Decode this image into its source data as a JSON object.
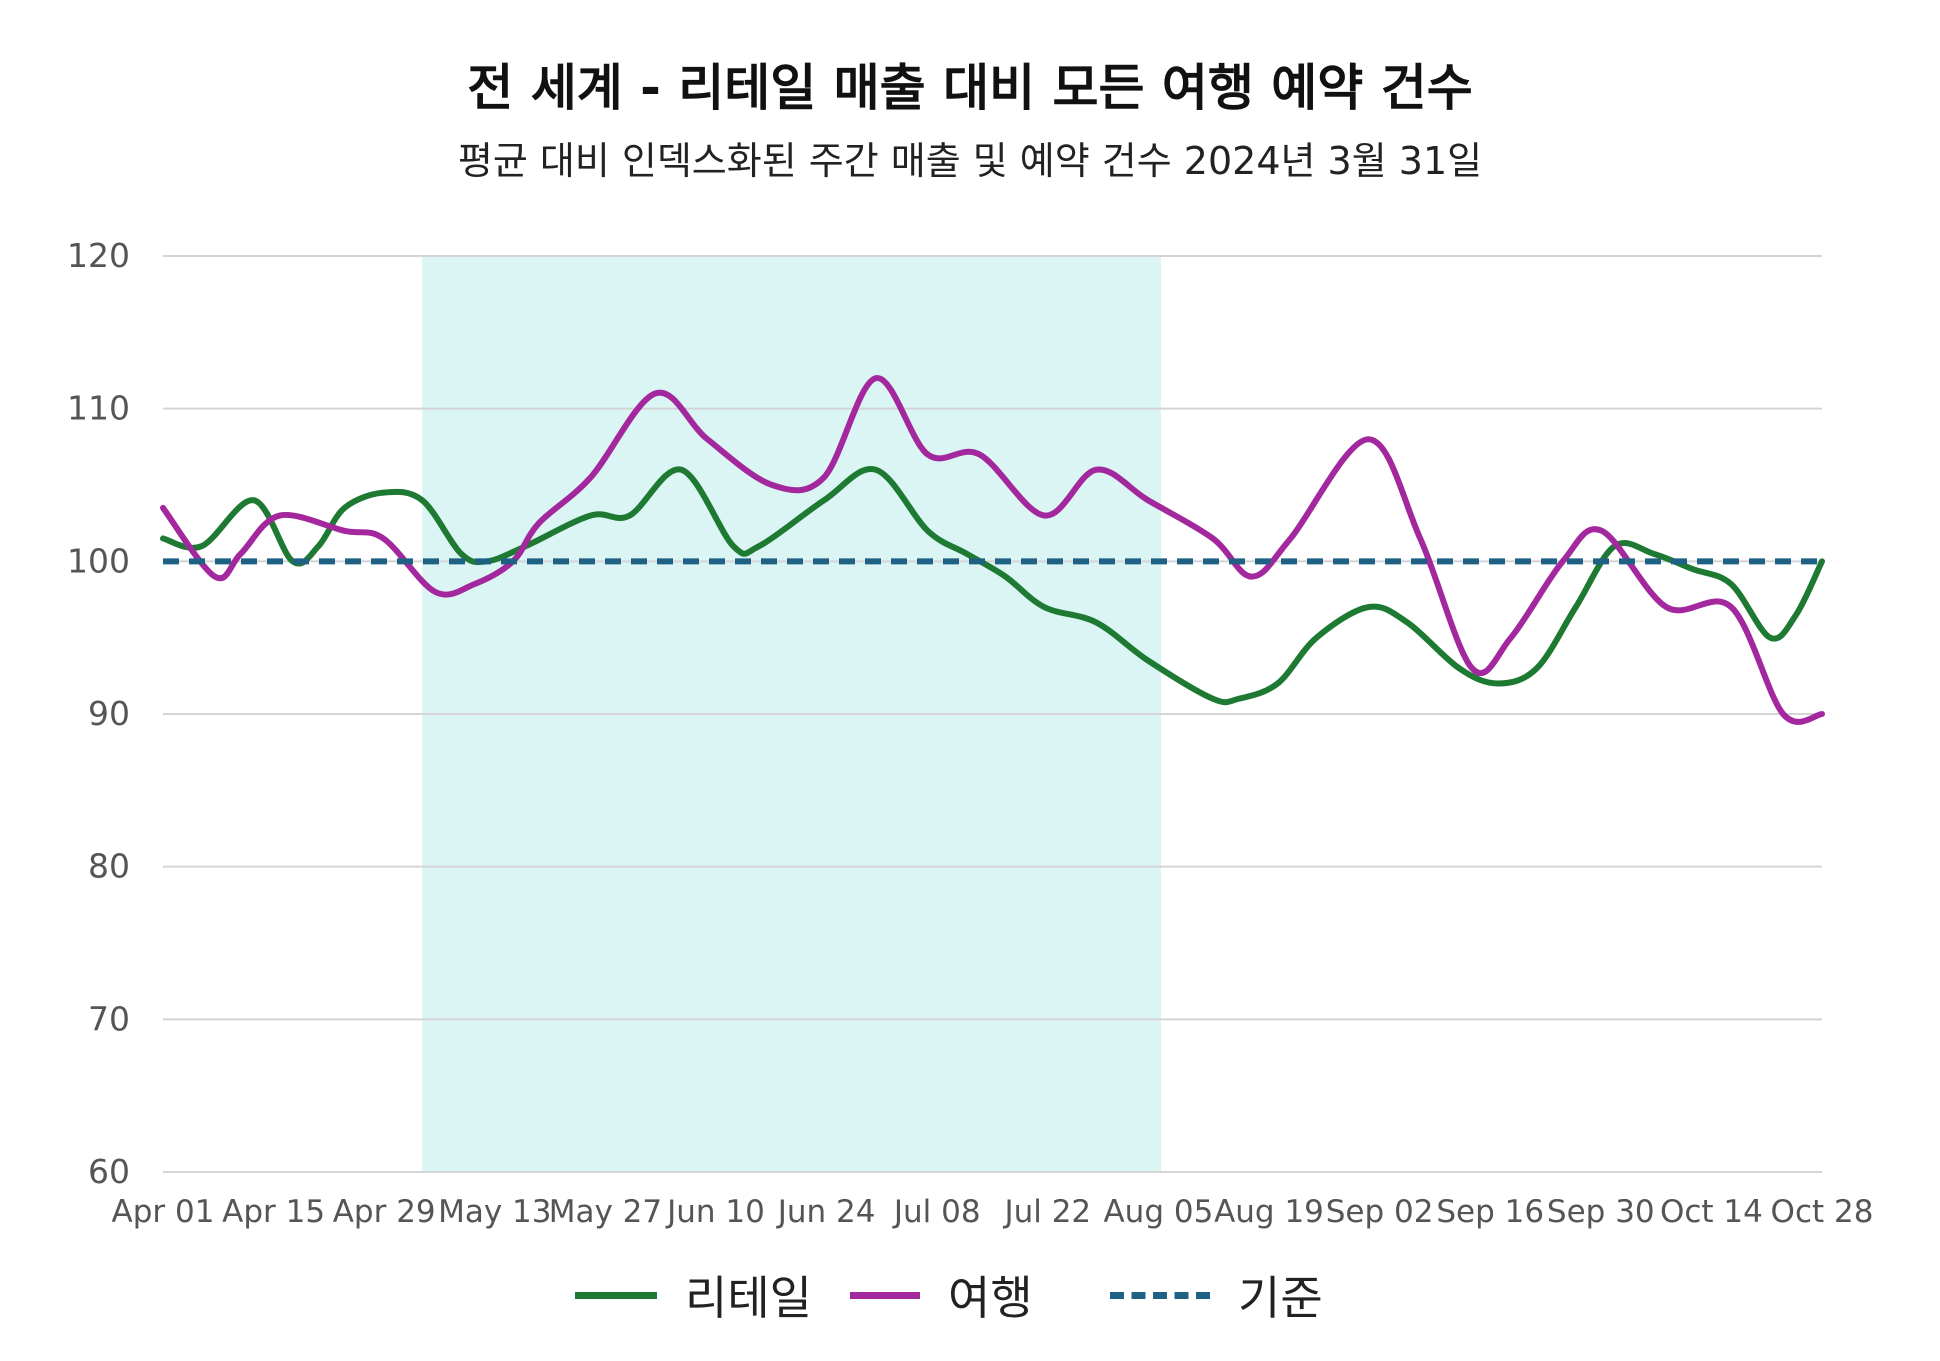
{
  "chart_data": {
    "type": "line",
    "title": "전 세계 - 리테일 매출 대비 모든 여행 예약 건수",
    "subtitle": "평균 대비 인덱스화된 주간 매출 및 예약 건수   2024년 3월 31일",
    "xlabel": "",
    "ylabel": "",
    "ylim": [
      60,
      120
    ],
    "yticks": [
      60,
      70,
      80,
      90,
      100,
      110,
      120
    ],
    "x_tick_labels": [
      "Apr 01",
      "Apr 15",
      "Apr 29",
      "May 13",
      "May 27",
      "Jun 10",
      "Jun 24",
      "Jul 08",
      "Jul 22",
      "Aug 05",
      "Aug 19",
      "Sep 02",
      "Sep 16",
      "Sep 30",
      "Oct 14",
      "Oct 28"
    ],
    "grid": true,
    "legend_position": "bottom",
    "highlight_band": {
      "from_week": 20,
      "to_week": 77,
      "color": "#dbf5f4"
    },
    "series": [
      {
        "name": "리테일",
        "color": "#1e7a32",
        "dash": false,
        "points": [
          [
            0,
            101.5
          ],
          [
            3,
            101
          ],
          [
            7,
            104
          ],
          [
            10,
            100
          ],
          [
            12,
            101
          ],
          [
            14,
            103.5
          ],
          [
            17,
            104.5
          ],
          [
            20,
            104
          ],
          [
            23,
            100.5
          ],
          [
            25,
            100
          ],
          [
            28,
            101
          ],
          [
            33,
            103
          ],
          [
            36,
            103
          ],
          [
            40,
            106
          ],
          [
            44,
            101
          ],
          [
            46,
            101
          ],
          [
            51,
            104
          ],
          [
            55,
            106
          ],
          [
            59,
            102
          ],
          [
            62,
            100.5
          ],
          [
            65,
            99
          ],
          [
            68,
            97
          ],
          [
            72,
            96
          ],
          [
            76,
            93.5
          ],
          [
            81,
            91
          ],
          [
            83,
            91
          ],
          [
            86,
            92
          ],
          [
            89,
            95
          ],
          [
            93,
            97
          ],
          [
            96,
            96
          ],
          [
            100,
            93
          ],
          [
            103,
            92
          ],
          [
            106,
            93
          ],
          [
            109,
            97
          ],
          [
            112,
            101
          ],
          [
            115,
            100.5
          ],
          [
            118,
            99.5
          ],
          [
            121,
            98.5
          ],
          [
            124,
            95
          ],
          [
            126,
            96.5
          ],
          [
            128,
            100
          ]
        ]
      },
      {
        "name": "여행",
        "color": "#a3289e",
        "dash": false,
        "points": [
          [
            0,
            103.5
          ],
          [
            4,
            99
          ],
          [
            6,
            100.5
          ],
          [
            9,
            103
          ],
          [
            14,
            102
          ],
          [
            17,
            101.5
          ],
          [
            21,
            98
          ],
          [
            24,
            98.5
          ],
          [
            27,
            100
          ],
          [
            29,
            102.5
          ],
          [
            33,
            105.5
          ],
          [
            38,
            111
          ],
          [
            42,
            108
          ],
          [
            47,
            105
          ],
          [
            51,
            105.5
          ],
          [
            55,
            112
          ],
          [
            59,
            107
          ],
          [
            63,
            107
          ],
          [
            68,
            103
          ],
          [
            72,
            106
          ],
          [
            76,
            104
          ],
          [
            81,
            101.5
          ],
          [
            84,
            99
          ],
          [
            87,
            101.5
          ],
          [
            93,
            108
          ],
          [
            97,
            101.5
          ],
          [
            101,
            93
          ],
          [
            104,
            95
          ],
          [
            108,
            100
          ],
          [
            111,
            102
          ],
          [
            116,
            97
          ],
          [
            121,
            97
          ],
          [
            125,
            90
          ],
          [
            128,
            90
          ]
        ]
      },
      {
        "name": "기준",
        "color": "#1f6185",
        "dash": true,
        "points": [
          [
            0,
            100
          ],
          [
            128,
            100
          ]
        ]
      }
    ]
  }
}
